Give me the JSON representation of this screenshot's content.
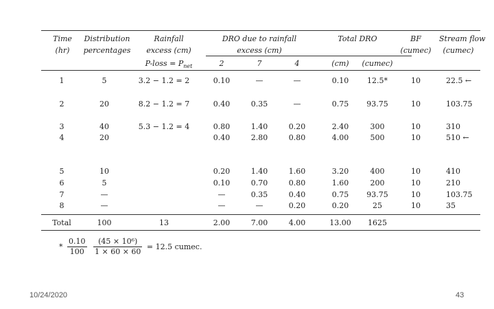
{
  "headers": {
    "time": "Time",
    "time_unit": "(hr)",
    "dist": "Distribution",
    "dist2": "percentages",
    "rain": "Rainfall",
    "rain2": "excess (cm)",
    "ploss": "P-loss = P",
    "ploss_sub": "net",
    "dro": "DRO due to rainfall",
    "dro2": "excess (cm)",
    "dro_2": "2",
    "dro_7": "7",
    "dro_4": "4",
    "total": "Total DRO",
    "total_cm": "(cm)",
    "total_cumec": "(cumec)",
    "bf": "BF",
    "bf_unit": "(cumec)",
    "sf": "Stream flow",
    "sf_unit": "(cumec)"
  },
  "rows": [
    {
      "time": "1",
      "dist": "5",
      "rain": "3.2 − 1.2 = 2",
      "d2": "0.10",
      "d7": "—",
      "d4": "—",
      "tcm": "0.10",
      "tcu": "12.5*",
      "bf": "10",
      "sf": "22.5 ←"
    },
    {
      "time": "2",
      "dist": "20",
      "rain": "8.2 − 1.2 = 7",
      "d2": "0.40",
      "d7": "0.35",
      "d4": "—",
      "tcm": "0.75",
      "tcu": "93.75",
      "bf": "10",
      "sf": "103.75"
    },
    {
      "time": "3",
      "dist": "40",
      "rain": "5.3 − 1.2 = 4",
      "d2": "0.80",
      "d7": "1.40",
      "d4": "0.20",
      "tcm": "2.40",
      "tcu": "300",
      "bf": "10",
      "sf": "310"
    },
    {
      "time": "4",
      "dist": "20",
      "rain": "",
      "d2": "0.40",
      "d7": "2.80",
      "d4": "0.80",
      "tcm": "4.00",
      "tcu": "500",
      "bf": "10",
      "sf": "510 ←"
    },
    {
      "time": "5",
      "dist": "10",
      "rain": "",
      "d2": "0.20",
      "d7": "1.40",
      "d4": "1.60",
      "tcm": "3.20",
      "tcu": "400",
      "bf": "10",
      "sf": "410"
    },
    {
      "time": "6",
      "dist": "5",
      "rain": "",
      "d2": "0.10",
      "d7": "0.70",
      "d4": "0.80",
      "tcm": "1.60",
      "tcu": "200",
      "bf": "10",
      "sf": "210"
    },
    {
      "time": "7",
      "dist": "—",
      "rain": "",
      "d2": "—",
      "d7": "0.35",
      "d4": "0.40",
      "tcm": "0.75",
      "tcu": "93.75",
      "bf": "10",
      "sf": "103.75"
    },
    {
      "time": "8",
      "dist": "—",
      "rain": "",
      "d2": "—",
      "d7": "—",
      "d4": "0.20",
      "tcm": "0.20",
      "tcu": "25",
      "bf": "10",
      "sf": "35"
    }
  ],
  "total_row": {
    "label": "Total",
    "dist": "100",
    "rain": "13",
    "d2": "2.00",
    "d7": "7.00",
    "d4": "4.00",
    "tcm": "13.00",
    "tcu": "1625"
  },
  "footnote": {
    "star": "*",
    "f1_num": "0.10",
    "f1_den": "100",
    "f2_num": "(45 × 10⁶)",
    "f2_den": "1 × 60 × 60",
    "result": "= 12.5 cumec."
  },
  "footer": {
    "date": "10/24/2020",
    "page": "43"
  }
}
